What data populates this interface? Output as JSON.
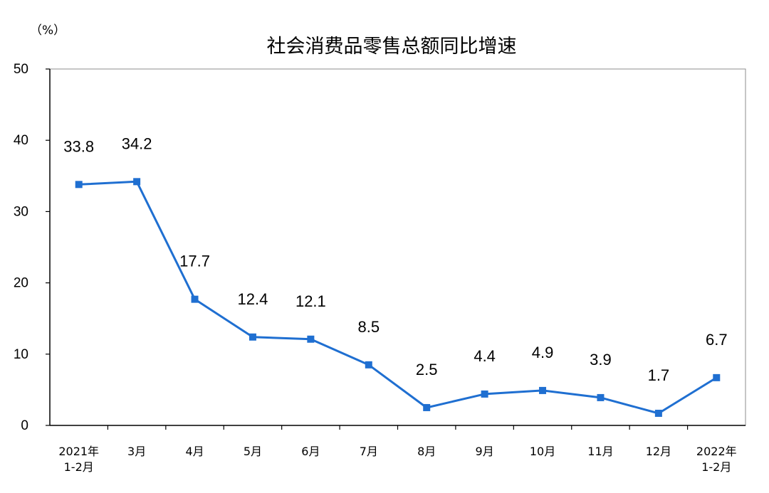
{
  "chart_data": {
    "type": "line",
    "title": "社会消费品零售总额同比增速",
    "unit": "（%）",
    "categories": [
      [
        "2021年",
        "1-2月"
      ],
      [
        "3月"
      ],
      [
        "4月"
      ],
      [
        "5月"
      ],
      [
        "6月"
      ],
      [
        "7月"
      ],
      [
        "8月"
      ],
      [
        "9月"
      ],
      [
        "10月"
      ],
      [
        "11月"
      ],
      [
        "12月"
      ],
      [
        "2022年",
        "1-2月"
      ]
    ],
    "values": [
      33.8,
      34.2,
      17.7,
      12.4,
      12.1,
      8.5,
      2.5,
      4.4,
      4.9,
      3.9,
      1.7,
      6.7
    ],
    "data_labels": [
      "33.8",
      "34.2",
      "17.7",
      "12.4",
      "12.1",
      "8.5",
      "2.5",
      "4.4",
      "4.9",
      "3.9",
      "1.7",
      "6.7"
    ],
    "yticks": [
      "0",
      "10",
      "20",
      "30",
      "40",
      "50"
    ],
    "ylim": [
      0,
      50
    ],
    "grid": false,
    "legend": "none",
    "line_color": "#1f6fd1"
  }
}
